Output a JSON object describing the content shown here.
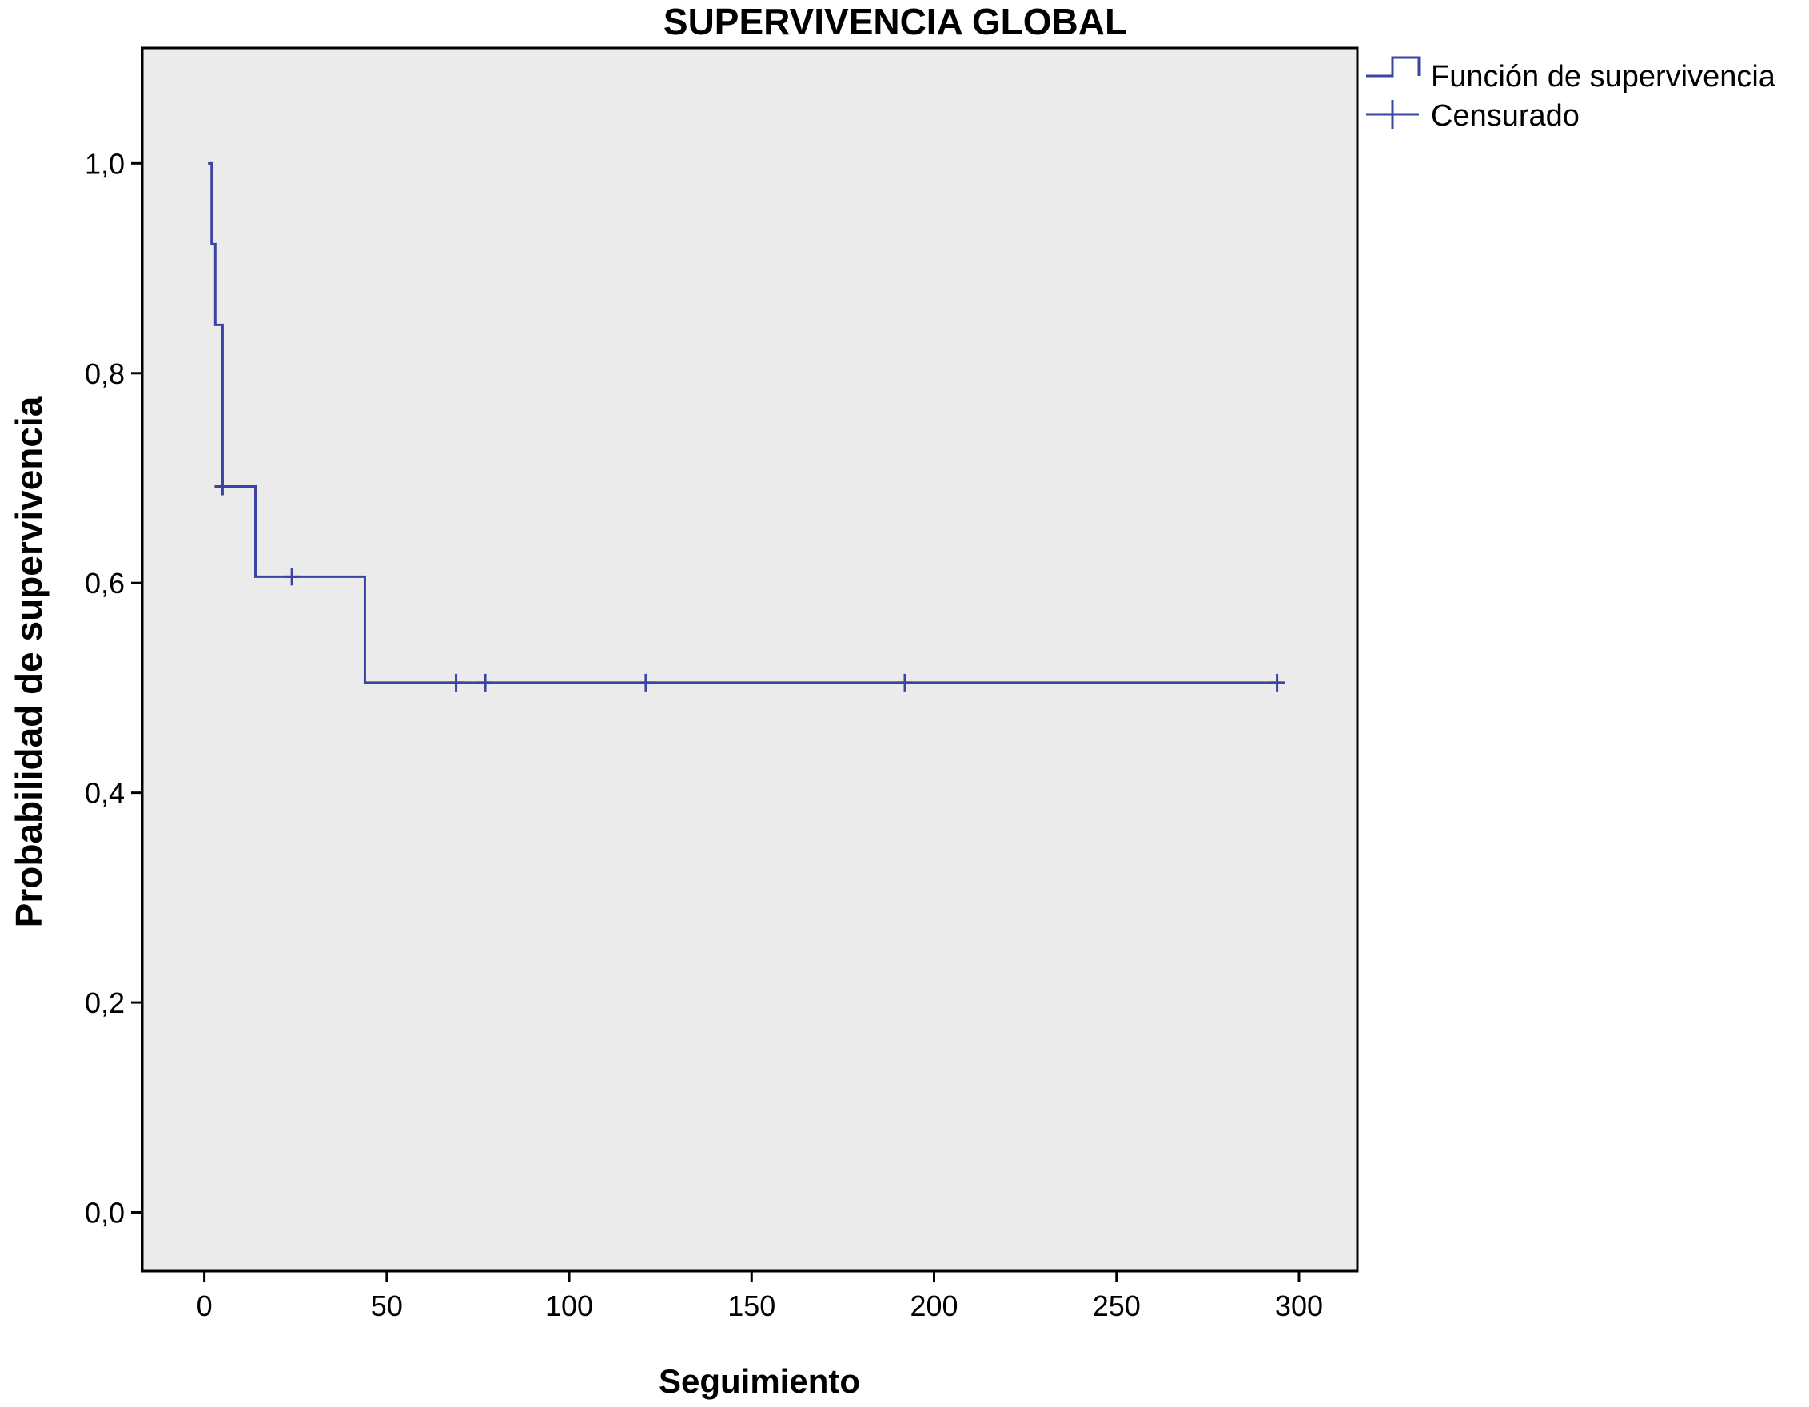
{
  "chart_data": {
    "type": "line",
    "title": "SUPERVIVENCIA GLOBAL",
    "xlabel": "Seguimiento",
    "ylabel": "Probabilidad de supervivencia",
    "xlim": [
      -17,
      316
    ],
    "ylim": [
      -0.056,
      1.11
    ],
    "x_ticks": [
      0,
      50,
      100,
      150,
      200,
      250,
      300
    ],
    "x_tick_labels": [
      "0",
      "50",
      "100",
      "150",
      "200",
      "250",
      "300"
    ],
    "y_ticks": [
      0.0,
      0.2,
      0.4,
      0.6,
      0.8,
      1.0
    ],
    "y_tick_labels": [
      "0,0",
      "0,2",
      "0,4",
      "0,6",
      "0,8",
      "1,0"
    ],
    "grid": false,
    "legend_position": "top-right, outside plot",
    "colors": {
      "plot_background": "#ebebeb",
      "series": "#3b44a0",
      "axis": "#000000"
    },
    "series": [
      {
        "name": "Función de supervivencia",
        "type": "step",
        "points": [
          [
            1,
            1.0
          ],
          [
            2,
            0.923
          ],
          [
            3,
            0.846
          ],
          [
            5,
            0.692
          ],
          [
            14,
            0.606
          ],
          [
            44,
            0.505
          ],
          [
            295,
            0.505
          ]
        ]
      },
      {
        "name": "Censurado",
        "type": "censor-marks",
        "points": [
          [
            5,
            0.692
          ],
          [
            24,
            0.606
          ],
          [
            69,
            0.505
          ],
          [
            77,
            0.505
          ],
          [
            121,
            0.505
          ],
          [
            192,
            0.505
          ],
          [
            294,
            0.505
          ]
        ]
      }
    ]
  }
}
